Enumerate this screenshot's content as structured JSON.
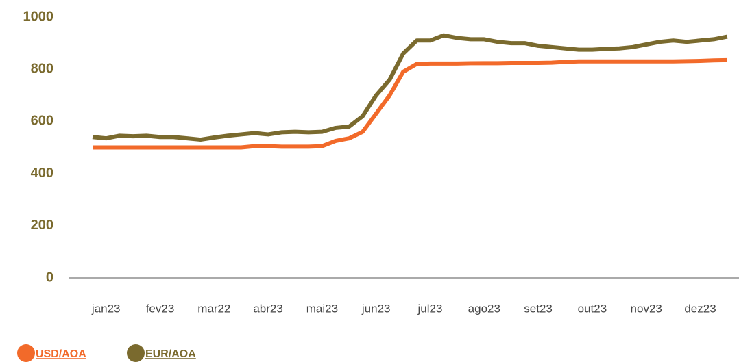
{
  "chart_data": {
    "type": "line",
    "categories": [
      null,
      "jan23",
      null,
      null,
      null,
      "fev23",
      null,
      null,
      null,
      "mar22",
      null,
      null,
      null,
      "abr23",
      null,
      null,
      null,
      "mai23",
      null,
      null,
      null,
      "jun23",
      null,
      null,
      null,
      "jul23",
      null,
      null,
      null,
      "ago23",
      null,
      null,
      null,
      "set23",
      null,
      null,
      null,
      "out23",
      null,
      null,
      null,
      "nov23",
      null,
      null,
      null,
      "dez23",
      null,
      null
    ],
    "series": [
      {
        "name": "USD/AOA",
        "color": "#f26a2a",
        "values": [
          500,
          500,
          500,
          500,
          500,
          500,
          500,
          500,
          500,
          500,
          500,
          500,
          505,
          505,
          503,
          503,
          503,
          505,
          525,
          535,
          560,
          630,
          700,
          790,
          820,
          822,
          822,
          822,
          823,
          823,
          823,
          824,
          824,
          824,
          825,
          828,
          830,
          830,
          830,
          830,
          830,
          830,
          830,
          830,
          831,
          832,
          834,
          835
        ]
      },
      {
        "name": "EUR/AOA",
        "color": "#7a6a2e",
        "values": [
          540,
          535,
          545,
          543,
          545,
          540,
          540,
          535,
          530,
          538,
          545,
          550,
          555,
          550,
          558,
          560,
          558,
          560,
          575,
          580,
          620,
          700,
          760,
          860,
          910,
          910,
          930,
          920,
          915,
          915,
          905,
          900,
          900,
          890,
          885,
          880,
          875,
          875,
          878,
          880,
          885,
          895,
          905,
          910,
          905,
          910,
          915,
          925
        ]
      }
    ],
    "ylim": [
      0,
      1000
    ],
    "yticks": [
      0,
      200,
      400,
      600,
      800,
      1000
    ]
  }
}
